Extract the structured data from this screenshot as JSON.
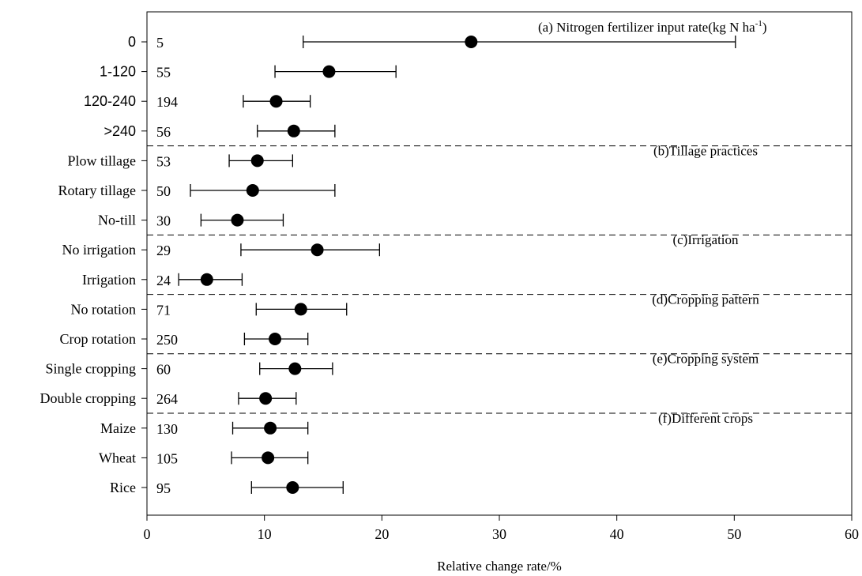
{
  "chart_data": {
    "type": "scatter",
    "subtype": "forest-plot",
    "xlabel": "Relative change rate/%",
    "ylabel": "",
    "xlim": [
      0,
      60
    ],
    "x_ticks": [
      0,
      10,
      20,
      30,
      40,
      50,
      60
    ],
    "grid": false,
    "marker_color": "#000000",
    "groups": [
      {
        "label": "(a) Nitrogen fertilizer input rate(kg N ha",
        "superscript": "-1",
        "label_suffix": ")",
        "rows": [
          {
            "category": "0",
            "n": "5",
            "mean": 27.6,
            "lower": 13.3,
            "upper": 50.1
          },
          {
            "category": "1-120",
            "n": "55",
            "mean": 15.5,
            "lower": 10.9,
            "upper": 21.2
          },
          {
            "category": "120-240",
            "n": "194",
            "mean": 11.0,
            "lower": 8.2,
            "upper": 13.9
          },
          {
            "category": ">240",
            "n": "56",
            "mean": 12.5,
            "lower": 9.4,
            "upper": 16.0
          }
        ]
      },
      {
        "label": "(b)Tillage practices",
        "rows": [
          {
            "category": "Plow tillage",
            "n": "53",
            "mean": 9.4,
            "lower": 7.0,
            "upper": 12.4
          },
          {
            "category": "Rotary tillage",
            "n": "50",
            "mean": 9.0,
            "lower": 3.7,
            "upper": 16.0
          },
          {
            "category": "No-till",
            "n": "30",
            "mean": 7.7,
            "lower": 4.6,
            "upper": 11.6
          }
        ]
      },
      {
        "label": "(c)Irrigation",
        "rows": [
          {
            "category": "No irrigation",
            "n": "29",
            "mean": 14.5,
            "lower": 8.0,
            "upper": 19.8
          },
          {
            "category": "Irrigation",
            "n": "24",
            "mean": 5.1,
            "lower": 2.7,
            "upper": 8.1
          }
        ]
      },
      {
        "label": "(d)Cropping pattern",
        "rows": [
          {
            "category": "No rotation",
            "n": "71",
            "mean": 13.1,
            "lower": 9.3,
            "upper": 17.0
          },
          {
            "category": "Crop rotation",
            "n": "250",
            "mean": 10.9,
            "lower": 8.3,
            "upper": 13.7
          }
        ]
      },
      {
        "label": "(e)Cropping system",
        "rows": [
          {
            "category": "Single cropping",
            "n": "60",
            "mean": 12.6,
            "lower": 9.6,
            "upper": 15.8
          },
          {
            "category": "Double cropping",
            "n": "264",
            "mean": 10.1,
            "lower": 7.8,
            "upper": 12.7
          }
        ]
      },
      {
        "label": "(f)Different crops",
        "rows": [
          {
            "category": "Maize",
            "n": "130",
            "mean": 10.5,
            "lower": 7.3,
            "upper": 13.7
          },
          {
            "category": "Wheat",
            "n": "105",
            "mean": 10.3,
            "lower": 7.2,
            "upper": 13.7
          },
          {
            "category": "Rice",
            "n": "95",
            "mean": 12.4,
            "lower": 8.9,
            "upper": 16.7
          }
        ]
      }
    ]
  }
}
